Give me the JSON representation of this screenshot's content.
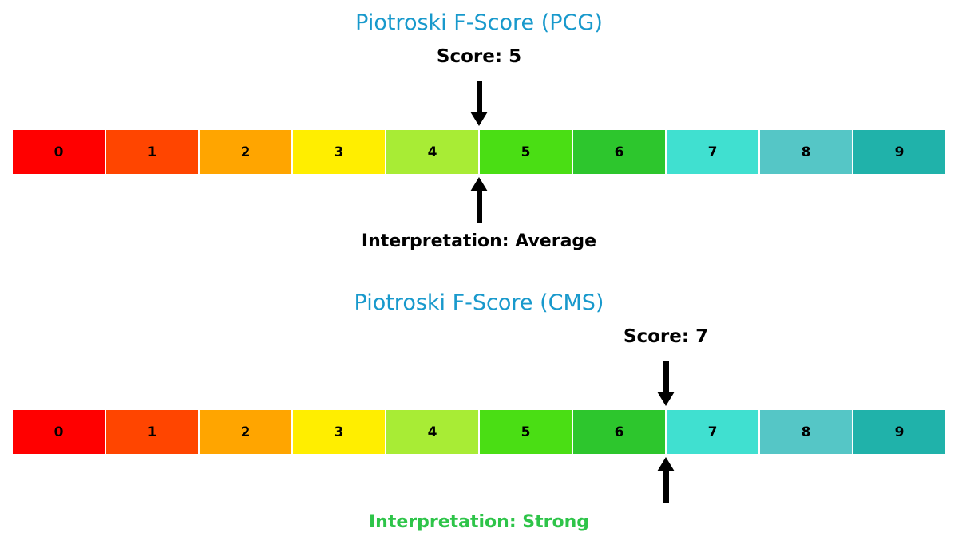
{
  "colors": {
    "title": "#1899CC",
    "text": "#000000",
    "interpretation_average": "#000000",
    "interpretation_strong": "#2EC449",
    "arrow": "#000000",
    "background": "#FFFFFF"
  },
  "scale": {
    "segments": [
      {
        "label": "0",
        "color": "#FF0000"
      },
      {
        "label": "1",
        "color": "#FF4500"
      },
      {
        "label": "2",
        "color": "#FFA500"
      },
      {
        "label": "3",
        "color": "#FFEE00"
      },
      {
        "label": "4",
        "color": "#A8EC35"
      },
      {
        "label": "5",
        "color": "#4ADE14"
      },
      {
        "label": "6",
        "color": "#2DC62D"
      },
      {
        "label": "7",
        "color": "#40E0D0"
      },
      {
        "label": "8",
        "color": "#55C6C6"
      },
      {
        "label": "9",
        "color": "#20B2AA"
      }
    ]
  },
  "chart_data": [
    {
      "type": "bar",
      "title": "Piotroski F-Score (PCG)",
      "score": 5,
      "score_label": "Score: 5",
      "interpretation_label": "Interpretation: Average",
      "interpretation": "Average",
      "interpretation_color": "#000000",
      "categories": [
        "0",
        "1",
        "2",
        "3",
        "4",
        "5",
        "6",
        "7",
        "8",
        "9"
      ],
      "scale_min": 0,
      "scale_max": 9,
      "legend": "none",
      "grid": false
    },
    {
      "type": "bar",
      "title": "Piotroski F-Score (CMS)",
      "score": 7,
      "score_label": "Score: 7",
      "interpretation_label": "Interpretation: Strong",
      "interpretation": "Strong",
      "interpretation_color": "#2EC449",
      "categories": [
        "0",
        "1",
        "2",
        "3",
        "4",
        "5",
        "6",
        "7",
        "8",
        "9"
      ],
      "scale_min": 0,
      "scale_max": 9,
      "legend": "none",
      "grid": false
    }
  ]
}
